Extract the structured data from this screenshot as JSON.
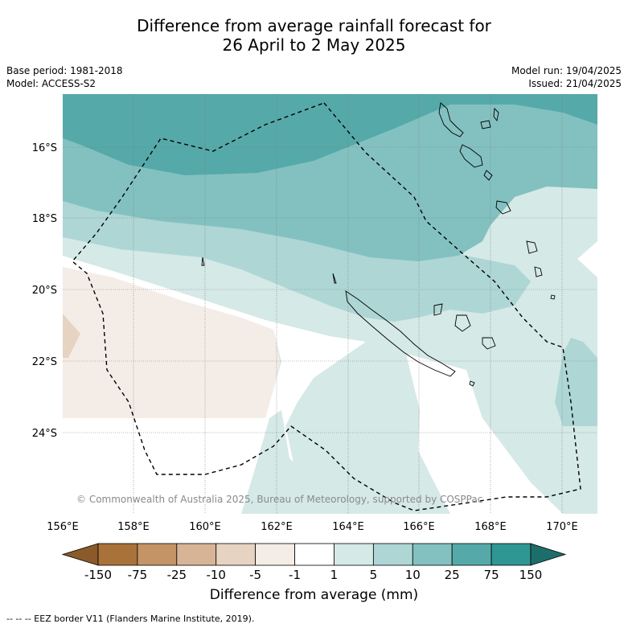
{
  "title": {
    "line1": "Difference from average rainfall forecast for",
    "line2": "26 April to 2 May 2025"
  },
  "meta_left": {
    "base_period": "Base period: 1981-2018",
    "model": "Model: ACCESS-S2"
  },
  "meta_right": {
    "model_run": "Model run: 19/04/2025",
    "issued": "Issued: 21/04/2025"
  },
  "map": {
    "lat_ticks": [
      "16°S",
      "18°S",
      "20°S",
      "22°S",
      "24°S"
    ],
    "lon_ticks": [
      "156°E",
      "158°E",
      "160°E",
      "162°E",
      "164°E",
      "166°E",
      "168°E",
      "170°E"
    ],
    "copyright": "© Commonwealth of Australia 2025, Bureau of Meteorology, supported by COSPPac"
  },
  "colorbar": {
    "labels": [
      "-150",
      "-75",
      "-25",
      "-10",
      "-5",
      "-1",
      "1",
      "5",
      "10",
      "25",
      "75",
      "150"
    ],
    "colors": [
      "#8b5a2b",
      "#a87238",
      "#c49466",
      "#d8b497",
      "#e7d3c1",
      "#f4ede7",
      "#ffffff",
      "#d5e9e7",
      "#aed6d5",
      "#83c1c0",
      "#56a9a9",
      "#2f9793",
      "#1d6e6b"
    ],
    "title": "Difference from average (mm)"
  },
  "footer": "--  --  -- EEZ border V11 (Flanders Marine Institute, 2019)."
}
